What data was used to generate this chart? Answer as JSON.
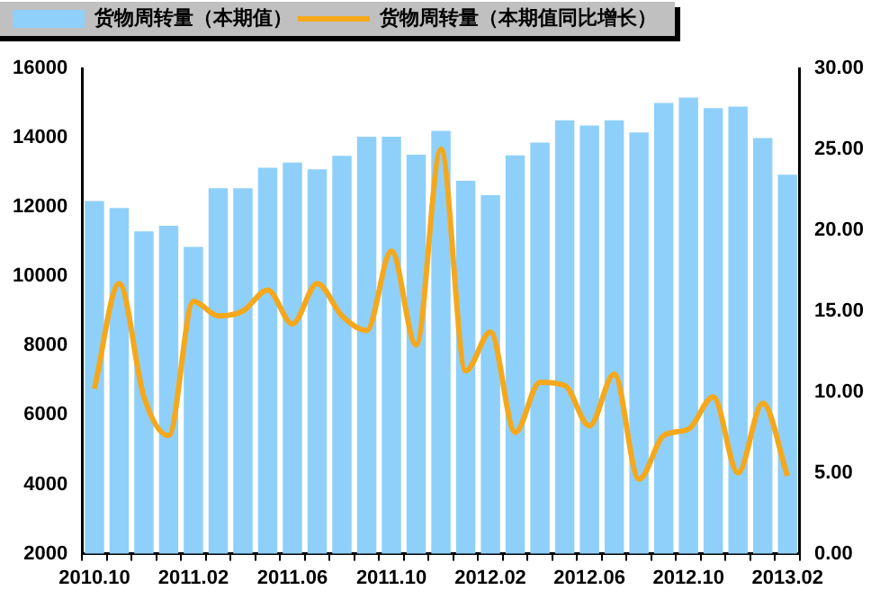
{
  "chart_data": {
    "type": "bar",
    "categories": [
      "2010.10",
      null,
      null,
      null,
      "2011.02",
      null,
      null,
      null,
      "2011.06",
      null,
      null,
      null,
      "2011.10",
      null,
      null,
      null,
      "2012.02",
      null,
      null,
      null,
      "2012.06",
      null,
      null,
      null,
      "2012.10",
      null,
      null,
      null,
      "2013.02"
    ],
    "series": [
      {
        "name": "货物周转量（本期值）",
        "color": "#8fd0fa",
        "values": [
          12170,
          11970,
          11300,
          11460,
          10850,
          12540,
          12540,
          13130,
          13280,
          13090,
          13480,
          14030,
          14030,
          13510,
          14200,
          12760,
          12340,
          13490,
          13860,
          14500,
          14350,
          14500,
          14150,
          15000,
          15160,
          14850,
          14900,
          13990,
          12930
        ]
      },
      {
        "name": "货物周转量（本期值同比增长）",
        "type": "line",
        "axis": "y2",
        "color": "#f5a81c",
        "values": [
          10.2,
          16.7,
          9.7,
          7.3,
          15.6,
          14.7,
          15.0,
          16.3,
          14.2,
          16.7,
          14.7,
          13.8,
          18.7,
          12.9,
          25.0,
          11.3,
          13.7,
          7.5,
          10.6,
          10.4,
          7.9,
          11.1,
          4.6,
          7.3,
          7.7,
          9.7,
          5.0,
          9.3,
          4.8
        ]
      }
    ],
    "ylim": [
      2000,
      16000
    ],
    "yticks": [
      2000,
      4000,
      6000,
      8000,
      10000,
      12000,
      14000,
      16000
    ],
    "y2lim": [
      0,
      30
    ],
    "y2ticks": [
      {
        "value": 0,
        "label": "0.00"
      },
      {
        "value": 5,
        "label": "5.00"
      },
      {
        "value": 10,
        "label": "10.00"
      },
      {
        "value": 15,
        "label": "15.00"
      },
      {
        "value": 20,
        "label": "20.00"
      },
      {
        "value": 25,
        "label": "25.00"
      },
      {
        "value": 30,
        "label": "30.00"
      }
    ],
    "grid": false,
    "legend": "top",
    "marker": "none",
    "line_style": "solid"
  }
}
